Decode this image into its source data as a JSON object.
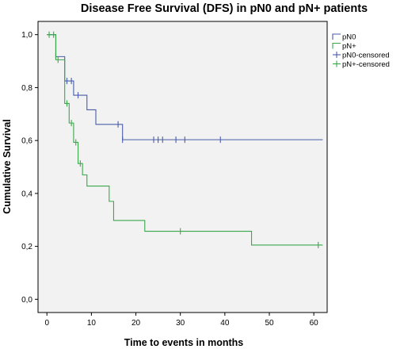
{
  "chart_data": {
    "type": "line",
    "title": "Disease Free Survival (DFS) in pN0 and pN+ patients",
    "xlabel": "Time to events in months",
    "ylabel": "Cumulative Survival",
    "xlim": [
      -2,
      63
    ],
    "ylim": [
      -0.05,
      1.05
    ],
    "x_ticks": [
      0,
      10,
      20,
      30,
      40,
      50,
      60
    ],
    "x_tick_labels": [
      "0",
      "10",
      "20",
      "30",
      "40",
      "50",
      "60"
    ],
    "y_ticks": [
      0.0,
      0.2,
      0.4,
      0.6,
      0.8,
      1.0
    ],
    "y_tick_labels": [
      "0,0",
      "0,2",
      "0,4",
      "0,6",
      "0,8",
      "1,0"
    ],
    "grid": false,
    "legend_position": "top-right",
    "legend": [
      "pN0",
      "pN+",
      "pN0-censored",
      "pN+-censored"
    ],
    "series": [
      {
        "name": "pN0",
        "color": "#4a5ea8",
        "steps": [
          [
            0,
            1.0
          ],
          [
            2,
            0.917
          ],
          [
            4,
            0.825
          ],
          [
            6,
            0.771
          ],
          [
            9,
            0.716
          ],
          [
            11,
            0.661
          ],
          [
            17,
            0.603
          ],
          [
            62,
            0.603
          ]
        ],
        "censored": [
          [
            2,
            0.917
          ],
          [
            4.5,
            0.825
          ],
          [
            5.5,
            0.825
          ],
          [
            7,
            0.771
          ],
          [
            16,
            0.661
          ],
          [
            17,
            0.603
          ],
          [
            24,
            0.603
          ],
          [
            25,
            0.603
          ],
          [
            26,
            0.603
          ],
          [
            29,
            0.603
          ],
          [
            31,
            0.603
          ],
          [
            39,
            0.603
          ]
        ]
      },
      {
        "name": "pN+",
        "color": "#3aa84a",
        "steps": [
          [
            0,
            1.0
          ],
          [
            2,
            0.905
          ],
          [
            4,
            0.74
          ],
          [
            5,
            0.666
          ],
          [
            6,
            0.593
          ],
          [
            7,
            0.513
          ],
          [
            8,
            0.47
          ],
          [
            9,
            0.428
          ],
          [
            14,
            0.37
          ],
          [
            15,
            0.298
          ],
          [
            22,
            0.257
          ],
          [
            46,
            0.205
          ],
          [
            62,
            0.205
          ]
        ],
        "censored": [
          [
            0.5,
            1.0
          ],
          [
            1.5,
            1.0
          ],
          [
            2.5,
            0.905
          ],
          [
            4.5,
            0.74
          ],
          [
            5.5,
            0.666
          ],
          [
            6.5,
            0.593
          ],
          [
            7.5,
            0.513
          ],
          [
            30,
            0.257
          ],
          [
            61,
            0.205
          ]
        ]
      }
    ]
  }
}
